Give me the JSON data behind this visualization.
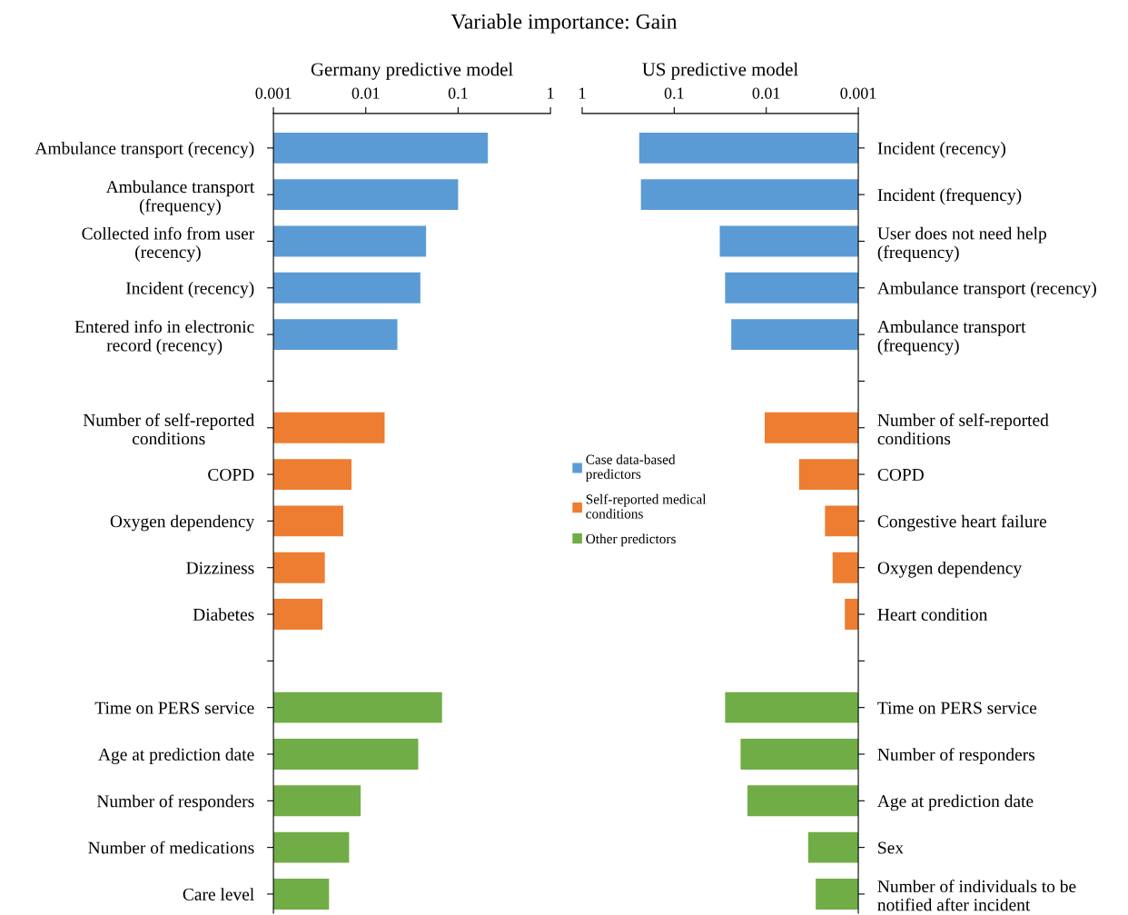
{
  "chart_data": [
    {
      "type": "bar",
      "orientation": "horizontal",
      "title": "Germany predictive model",
      "annotations": [
        "Variable importance: Gain"
      ],
      "log": "x",
      "xlim": [
        0.001,
        1
      ],
      "xticks": [
        0.001,
        0.01,
        0.1,
        1
      ],
      "grid": false,
      "legend": "right",
      "categories": [
        "Ambulance transport (recency)",
        "Ambulance transport\n(frequency)",
        "Collected info from user\n(recency)",
        "Incident (recency)",
        "Entered info in electronic\nrecord (recency)",
        null,
        "Number of self-reported\nconditions",
        "COPD",
        "Oxygen dependency",
        "Dizziness",
        "Diabetes",
        null,
        "Time on PERS service",
        "Age at prediction date",
        "Number of responders",
        "Number of medications",
        "Care level"
      ],
      "series": [
        {
          "name": "Case data-based\npredictors",
          "color": "#5b9bd5",
          "values": [
            0.21,
            0.1,
            0.045,
            0.039,
            0.022,
            null,
            null,
            null,
            null,
            null,
            null,
            null,
            null,
            null,
            null,
            null,
            null
          ]
        },
        {
          "name": "Self-reported medical\nconditions",
          "color": "#ed7d31",
          "values": [
            null,
            null,
            null,
            null,
            null,
            null,
            0.016,
            0.007,
            0.0057,
            0.0036,
            0.0034,
            null,
            null,
            null,
            null,
            null,
            null
          ]
        },
        {
          "name": "Other predictors",
          "color": "#70ad47",
          "values": [
            null,
            null,
            null,
            null,
            null,
            null,
            null,
            null,
            null,
            null,
            null,
            null,
            0.067,
            0.037,
            0.0088,
            0.0066,
            0.004
          ]
        }
      ]
    },
    {
      "type": "bar",
      "orientation": "horizontal",
      "title": "US predictive model",
      "log": "x",
      "xlim": [
        1,
        0.001
      ],
      "xticks": [
        1,
        0.1,
        0.01,
        0.001
      ],
      "grid": false,
      "categories": [
        "Incident (recency)",
        "Incident (frequency)",
        "User does not need help\n(frequency)",
        "Ambulance transport (recency)",
        "Ambulance transport\n(frequency)",
        null,
        "Number of self-reported\nconditions",
        "COPD",
        "Congestive heart failure",
        "Oxygen dependency",
        "Heart condition",
        null,
        "Time on PERS service",
        "Number of responders",
        "Age at prediction date",
        "Sex",
        "Number of individuals to be\nnotified after incident"
      ],
      "series": [
        {
          "color": "#5b9bd5",
          "values": [
            0.24,
            0.23,
            0.032,
            0.028,
            0.024,
            null,
            null,
            null,
            null,
            null,
            null,
            null,
            null,
            null,
            null,
            null,
            null
          ]
        },
        {
          "color": "#ed7d31",
          "values": [
            null,
            null,
            null,
            null,
            null,
            null,
            0.0104,
            0.0044,
            0.0023,
            0.0019,
            0.0014,
            null,
            null,
            null,
            null,
            null,
            null
          ]
        },
        {
          "color": "#70ad47",
          "values": [
            null,
            null,
            null,
            null,
            null,
            null,
            null,
            null,
            null,
            null,
            null,
            null,
            0.028,
            0.019,
            0.016,
            0.0035,
            0.0029
          ]
        }
      ]
    }
  ]
}
